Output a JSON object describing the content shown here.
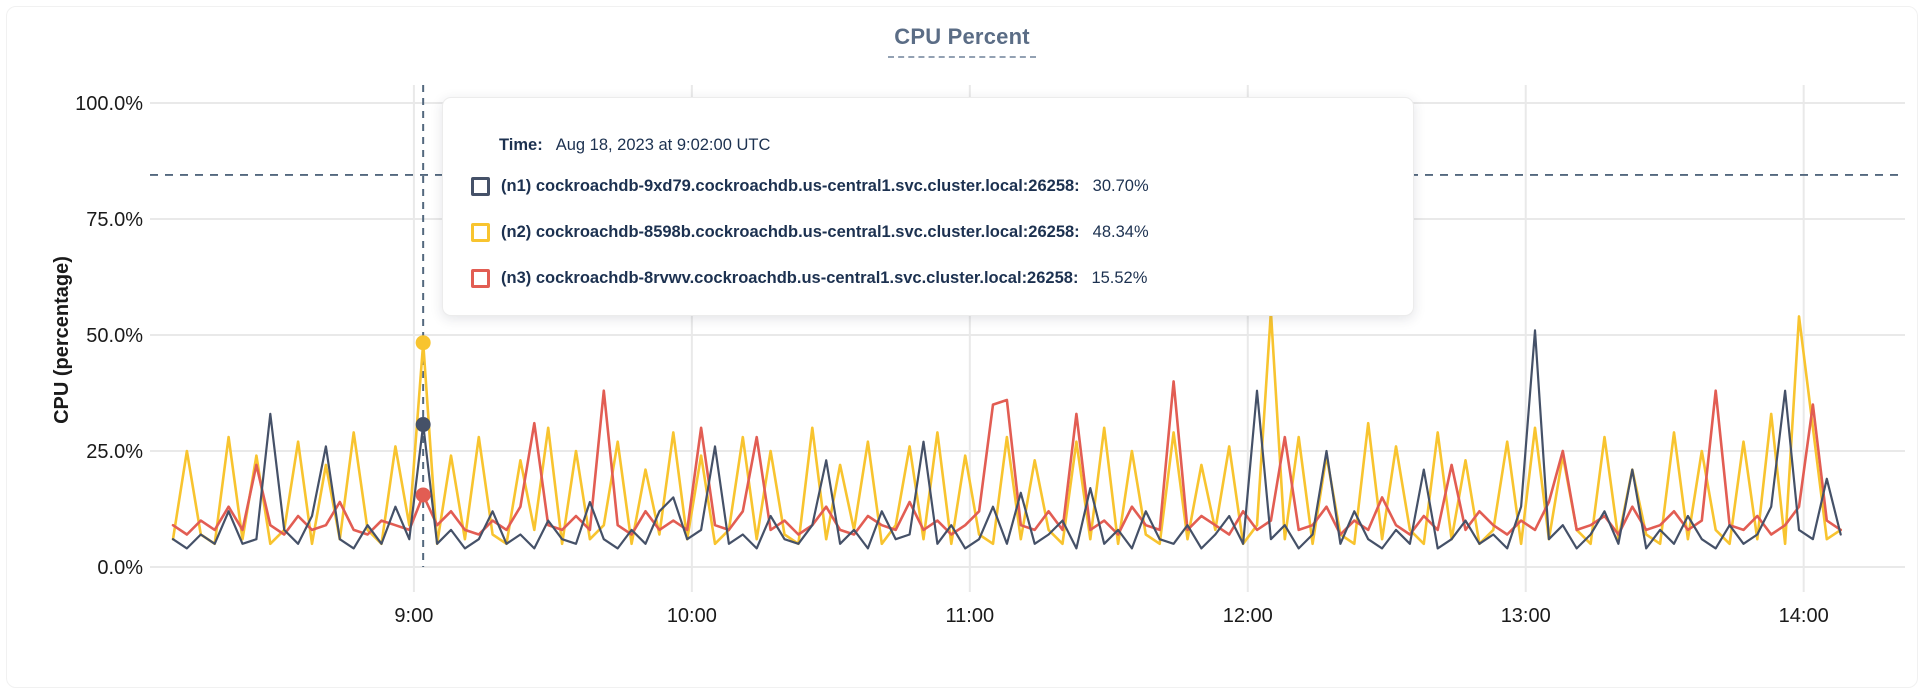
{
  "tooltip": {
    "time_label": "Time:",
    "time_value": "Aug 18, 2023 at 9:02:00 UTC"
  },
  "colors": {
    "title": "#5b6d86",
    "text": "#1c3150",
    "axis_text": "#1a1a1a",
    "gridline": "#e9e9e9",
    "dashed_guide": "#53687e",
    "series_n1": "#455168",
    "series_n2": "#f8c42f",
    "series_n3": "#e25d53"
  },
  "chart_data": {
    "type": "line",
    "title": "CPU Percent",
    "ylabel": "CPU (percentage)",
    "ylim": [
      0,
      100
    ],
    "grid": true,
    "legend_position": "tooltip-overlay",
    "yticks": [
      {
        "value": 0,
        "label": "0.0%"
      },
      {
        "value": 25,
        "label": "25.0%"
      },
      {
        "value": 50,
        "label": "50.0%"
      },
      {
        "value": 75,
        "label": "75.0%"
      },
      {
        "value": 100,
        "label": "100.0%"
      }
    ],
    "xticks": [
      {
        "minute": 540,
        "label": "9:00"
      },
      {
        "minute": 600,
        "label": "10:00"
      },
      {
        "minute": 660,
        "label": "11:00"
      },
      {
        "minute": 720,
        "label": "12:00"
      },
      {
        "minute": 780,
        "label": "13:00"
      },
      {
        "minute": 840,
        "label": "14:00"
      }
    ],
    "x_start_minute": 488,
    "x_end_minute": 848,
    "step_minutes": 3,
    "threshold_value": 84.5,
    "hover": {
      "minute": 542,
      "label": "9:02"
    },
    "series": [
      {
        "id": "n1",
        "name": "(n1) cockroachdb-9xd79.cockroachdb.us-central1.svc.cluster.local:26258:",
        "color": "#455168",
        "hover_value": 30.7,
        "hover_display": "30.70%",
        "values": [
          6,
          4,
          7,
          5,
          12,
          5,
          6,
          33,
          8,
          5,
          11,
          26,
          6,
          4,
          9,
          5,
          13,
          6,
          30.7,
          5,
          8,
          4,
          6,
          12,
          5,
          7,
          4,
          10,
          6,
          5,
          14,
          6,
          4,
          8,
          5,
          12,
          15,
          6,
          8,
          26,
          5,
          7,
          4,
          11,
          6,
          5,
          9,
          23,
          5,
          8,
          4,
          12,
          6,
          7,
          27,
          5,
          9,
          4,
          6,
          13,
          5,
          16,
          5,
          7,
          10,
          4,
          17,
          5,
          8,
          4,
          12,
          6,
          5,
          9,
          4,
          7,
          11,
          5,
          38,
          6,
          9,
          4,
          7,
          25,
          5,
          12,
          6,
          4,
          8,
          5,
          21,
          4,
          6,
          10,
          5,
          7,
          4,
          13,
          51,
          6,
          9,
          4,
          7,
          12,
          5,
          21,
          4,
          8,
          5,
          11,
          6,
          4,
          9,
          5,
          7,
          13,
          38,
          8,
          6,
          19,
          7
        ]
      },
      {
        "id": "n2",
        "name": "(n2) cockroachdb-8598b.cockroachdb.us-central1.svc.cluster.local:26258:",
        "color": "#f8c42f",
        "hover_value": 48.34,
        "hover_display": "48.34%",
        "values": [
          6,
          25,
          7,
          5,
          28,
          6,
          24,
          5,
          8,
          27,
          5,
          22,
          6,
          29,
          8,
          5,
          26,
          9,
          48.34,
          5,
          24,
          6,
          28,
          7,
          5,
          23,
          8,
          30,
          5,
          25,
          6,
          9,
          27,
          5,
          21,
          7,
          29,
          6,
          24,
          5,
          8,
          28,
          6,
          25,
          7,
          5,
          30,
          6,
          22,
          8,
          27,
          5,
          9,
          26,
          6,
          29,
          5,
          24,
          7,
          5,
          28,
          6,
          23,
          8,
          5,
          27,
          6,
          30,
          5,
          25,
          7,
          5,
          29,
          6,
          22,
          8,
          26,
          5,
          9,
          55,
          6,
          28,
          5,
          24,
          7,
          5,
          31,
          6,
          26,
          8,
          5,
          29,
          6,
          23,
          5,
          8,
          27,
          5,
          30,
          6,
          24,
          8,
          5,
          28,
          6,
          21,
          7,
          5,
          29,
          6,
          25,
          8,
          5,
          27,
          6,
          33,
          5,
          54,
          30,
          6,
          8
        ]
      },
      {
        "id": "n3",
        "name": "(n3) cockroachdb-8rvwv.cockroachdb.us-central1.svc.cluster.local:26258:",
        "color": "#e25d53",
        "hover_value": 15.52,
        "hover_display": "15.52%",
        "values": [
          9,
          7,
          10,
          8,
          13,
          8,
          22,
          9,
          7,
          11,
          8,
          9,
          14,
          8,
          7,
          10,
          9,
          8,
          15.52,
          9,
          12,
          8,
          7,
          10,
          8,
          13,
          31,
          9,
          8,
          11,
          8,
          38,
          9,
          7,
          12,
          8,
          10,
          8,
          30,
          9,
          8,
          12,
          28,
          8,
          10,
          7,
          9,
          13,
          8,
          7,
          11,
          9,
          8,
          14,
          8,
          10,
          7,
          9,
          12,
          35,
          36,
          9,
          8,
          12,
          8,
          33,
          8,
          10,
          7,
          13,
          9,
          8,
          40,
          8,
          11,
          9,
          7,
          12,
          8,
          10,
          28,
          8,
          9,
          13,
          7,
          10,
          8,
          15,
          9,
          7,
          11,
          8,
          22,
          8,
          12,
          9,
          7,
          10,
          8,
          14,
          25,
          8,
          9,
          11,
          7,
          13,
          8,
          9,
          12,
          8,
          10,
          38,
          9,
          8,
          11,
          7,
          9,
          13,
          35,
          10,
          8
        ]
      }
    ]
  }
}
